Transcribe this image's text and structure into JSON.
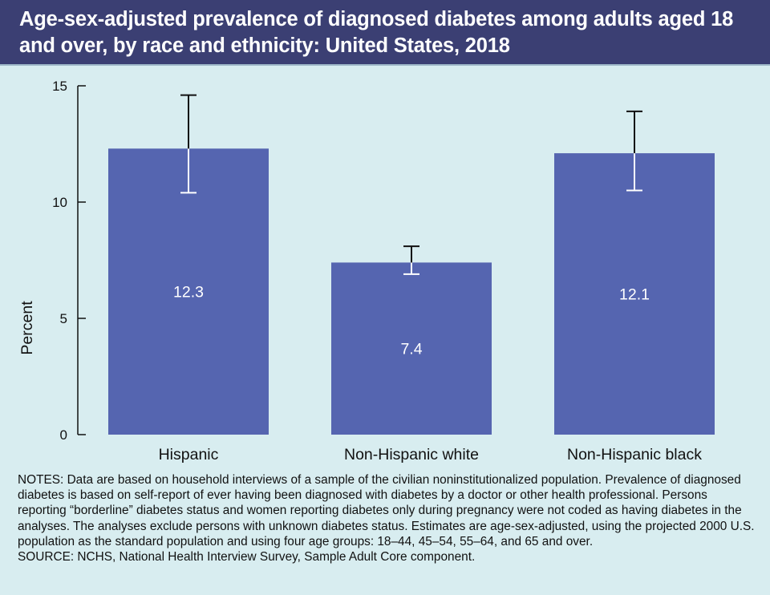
{
  "title": "Age-sex-adjusted prevalence of diagnosed diabetes among adults aged 18 and over, by race and ethnicity: United States, 2018",
  "colors": {
    "header_bg": "#3b3f73",
    "page_bg": "#d8edf0",
    "bar": "#5565b0"
  },
  "chart_data": {
    "type": "bar",
    "categories": [
      "Hispanic",
      "Non-Hispanic white",
      "Non-Hispanic black"
    ],
    "values": [
      12.3,
      7.4,
      12.1
    ],
    "value_labels": [
      "12.3",
      "7.4",
      "12.1"
    ],
    "error_low": [
      10.4,
      6.9,
      10.5
    ],
    "error_high": [
      14.6,
      8.1,
      13.9
    ],
    "ylabel": "Percent",
    "ylim": [
      0,
      15
    ],
    "yticks": [
      "0",
      "5",
      "10",
      "15"
    ],
    "grid": false
  },
  "notes": [
    "NOTES: Data are based on household interviews of a sample of the civilian noninstitutionalized population. Prevalence of diagnosed diabetes is based on self-report of ever having been diagnosed with diabetes by a doctor or other health professional. Persons reporting “borderline” diabetes status and women reporting diabetes only during pregnancy were not coded as having diabetes in the analyses. The analyses exclude persons with unknown diabetes status. Estimates are age-sex-adjusted, using the projected 2000 U.S. population as the standard population and using four age groups: 18–44, 45–54, 55–64, and 65 and over.",
    "SOURCE: NCHS, National Health Interview Survey, Sample Adult Core component."
  ]
}
